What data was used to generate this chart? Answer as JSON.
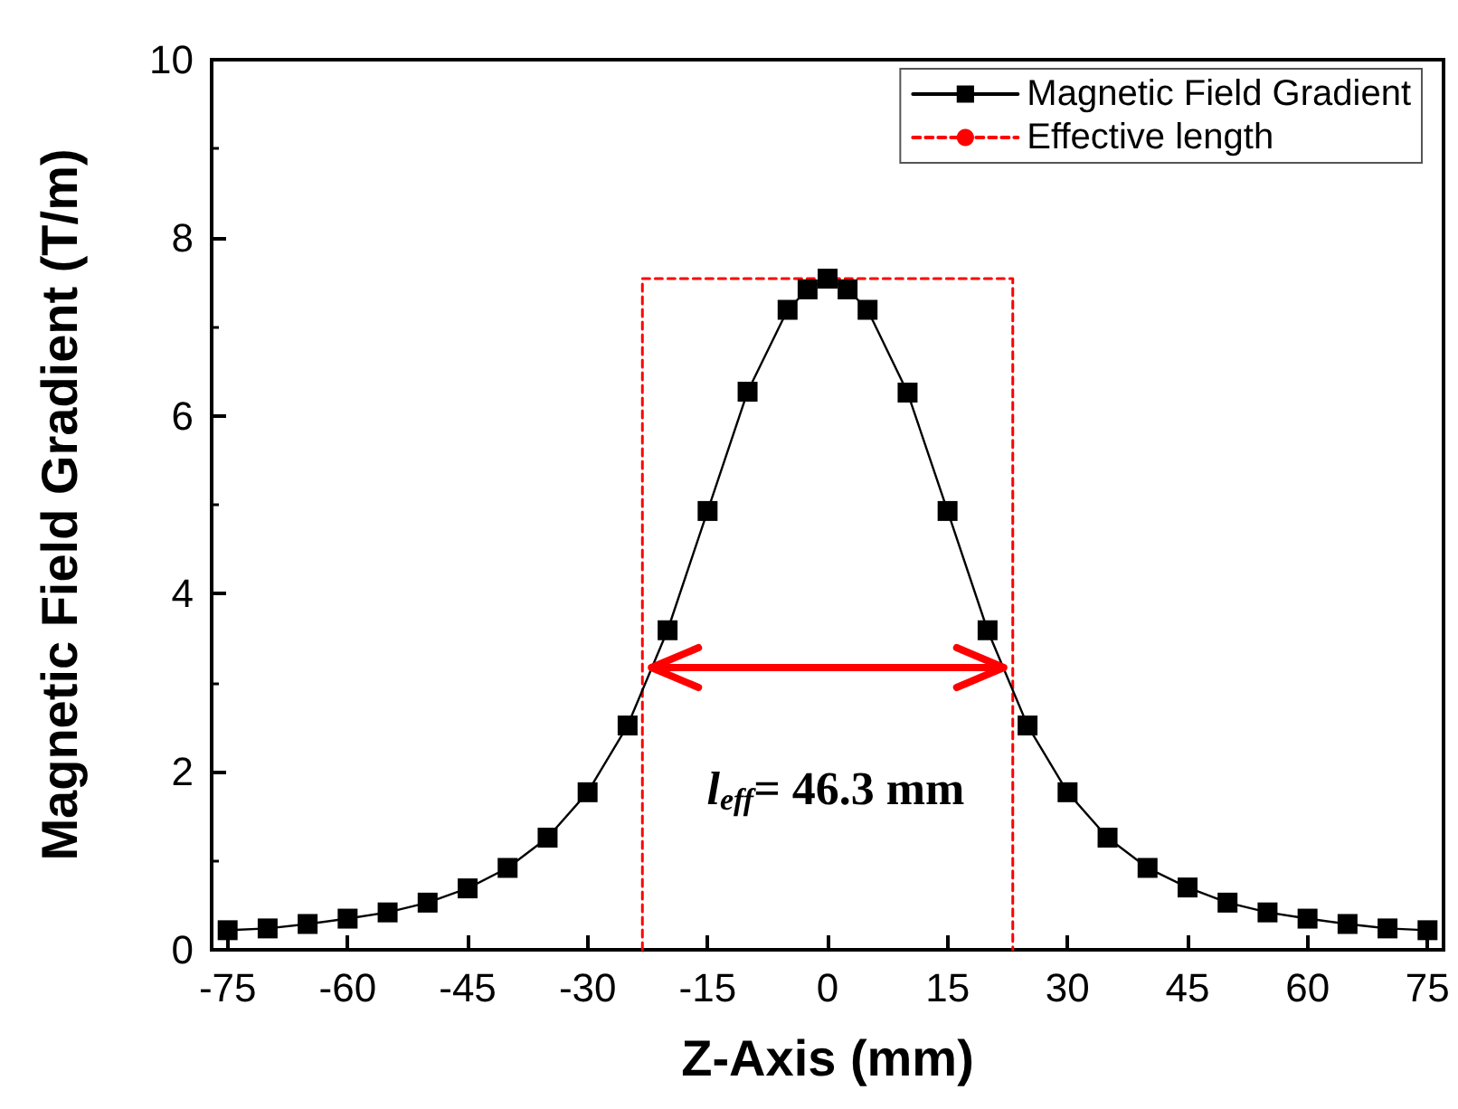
{
  "chart_data": {
    "type": "line",
    "xlabel": "Z-Axis (mm)",
    "ylabel": "Magnetic Field Gradient (T/m)",
    "series": [
      {
        "name": "Magnetic Field Gradient",
        "color": "#000000",
        "x": [
          -75,
          -70,
          -65,
          -60,
          -55,
          -50,
          -45,
          -40,
          -35,
          -30,
          -25,
          -20,
          -15,
          -10,
          -5,
          -2.5,
          0,
          2.5,
          5,
          10,
          15,
          20,
          25,
          30,
          35,
          40,
          45,
          50,
          55,
          60,
          65,
          70,
          75
        ],
        "values": [
          0.22,
          0.24,
          0.29,
          0.35,
          0.42,
          0.53,
          0.69,
          0.92,
          1.26,
          1.77,
          2.52,
          3.59,
          4.93,
          6.27,
          7.19,
          7.42,
          7.54,
          7.42,
          7.19,
          6.26,
          4.93,
          3.59,
          2.52,
          1.77,
          1.26,
          0.92,
          0.7,
          0.53,
          0.42,
          0.35,
          0.29,
          0.24,
          0.22
        ]
      },
      {
        "name": "Effective length",
        "color": "#ff0000",
        "marker": "none",
        "line_style": "dashed",
        "x": [
          -23.15,
          -23.15,
          23.15,
          23.15
        ],
        "values": [
          0,
          7.54,
          7.54,
          0
        ]
      }
    ],
    "xlim": [
      -77,
      77
    ],
    "xticks": [
      -75,
      -60,
      -45,
      -30,
      -15,
      0,
      15,
      30,
      45,
      60,
      75
    ],
    "ylim": [
      0,
      10
    ],
    "yticks": [
      0,
      2,
      4,
      6,
      8,
      10
    ],
    "grid": false,
    "legend": "top right",
    "marker": "square",
    "line_style": "solid",
    "annotations": [
      "l$_{eff}$= 46.3 mm"
    ]
  }
}
